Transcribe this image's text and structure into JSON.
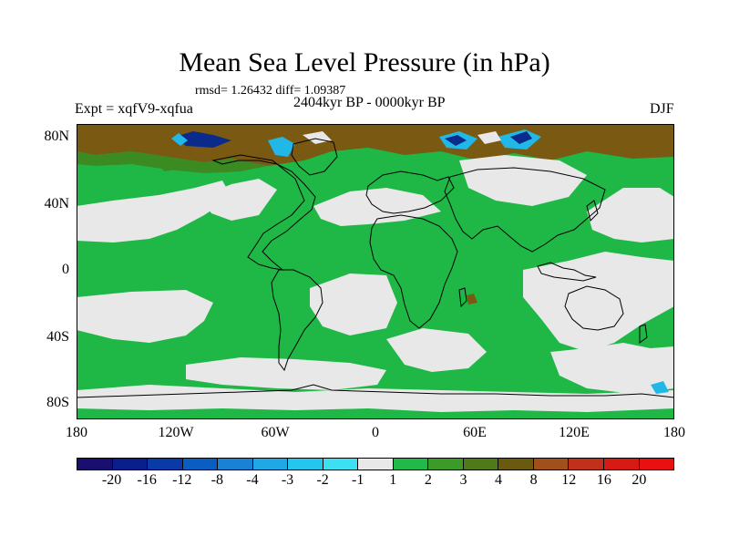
{
  "title": "Mean Sea Level Pressure (in hPa)",
  "stats": "rmsd= 1.26432 diff= 1.09387",
  "period": "2404kyr BP - 0000kyr BP",
  "experiment": "Expt = xqfV9-xqfua",
  "season": "DJF",
  "map": {
    "lat_labels": [
      "80N",
      "40N",
      "0",
      "40S",
      "80S"
    ],
    "lon_labels": [
      "180",
      "120W",
      "60W",
      "0",
      "60E",
      "120E",
      "180"
    ],
    "colors": {
      "ocean_positive": "#1fb846",
      "neutral": "#e8e8e8",
      "high_positive": "#7a5a12",
      "mid_positive": "#3c8a22",
      "negative": "#21b8e8",
      "strong_negative": "#0a2a8c",
      "coast": "#000000"
    }
  },
  "colorbar": {
    "labels": [
      "-20",
      "-16",
      "-12",
      "-8",
      "-4",
      "-3",
      "-2",
      "-1",
      "1",
      "2",
      "3",
      "4",
      "8",
      "12",
      "16",
      "20"
    ],
    "colors": [
      "#1a0f6e",
      "#0a1e8c",
      "#0a3aa8",
      "#0a5ec2",
      "#1a82d6",
      "#20a8e6",
      "#25c6ee",
      "#3ce0f0",
      "#e8e8e8",
      "#22b84a",
      "#3c9a28",
      "#507a1a",
      "#6a5a10",
      "#a0501a",
      "#c0301a",
      "#d81a14",
      "#e81010"
    ]
  }
}
